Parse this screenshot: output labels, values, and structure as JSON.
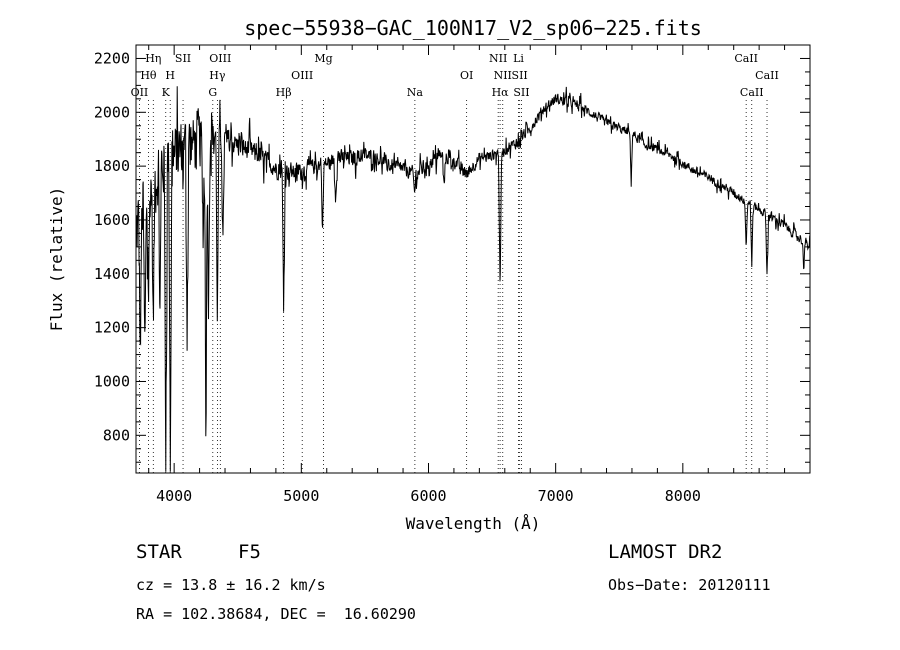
{
  "chart_data": {
    "type": "line",
    "title": "spec−55938−GAC_100N17_V2_sp06−225.fits",
    "xlabel": "Wavelength (Å)",
    "ylabel": "Flux (relative)",
    "xlim": [
      3700,
      9000
    ],
    "ylim": [
      660,
      2250
    ],
    "xticks": [
      4000,
      5000,
      6000,
      7000,
      8000
    ],
    "yticks": [
      800,
      1000,
      1200,
      1400,
      1600,
      1800,
      2000,
      2200
    ],
    "grid": false,
    "continuum": [
      [
        3700,
        1550
      ],
      [
        3800,
        1700
      ],
      [
        3900,
        1800
      ],
      [
        4000,
        1840
      ],
      [
        4100,
        1880
      ],
      [
        4200,
        1900
      ],
      [
        4300,
        1920
      ],
      [
        4400,
        1900
      ],
      [
        4500,
        1880
      ],
      [
        4600,
        1860
      ],
      [
        4700,
        1830
      ],
      [
        4800,
        1790
      ],
      [
        4900,
        1780
      ],
      [
        5000,
        1780
      ],
      [
        5100,
        1800
      ],
      [
        5200,
        1810
      ],
      [
        5300,
        1830
      ],
      [
        5400,
        1830
      ],
      [
        5500,
        1840
      ],
      [
        5600,
        1830
      ],
      [
        5700,
        1800
      ],
      [
        5800,
        1790
      ],
      [
        5900,
        1770
      ],
      [
        6000,
        1810
      ],
      [
        6100,
        1840
      ],
      [
        6200,
        1820
      ],
      [
        6300,
        1770
      ],
      [
        6400,
        1830
      ],
      [
        6500,
        1840
      ],
      [
        6600,
        1860
      ],
      [
        6700,
        1890
      ],
      [
        6800,
        1940
      ],
      [
        6900,
        2010
      ],
      [
        7000,
        2050
      ],
      [
        7100,
        2040
      ],
      [
        7200,
        2020
      ],
      [
        7300,
        1990
      ],
      [
        7400,
        1960
      ],
      [
        7500,
        1940
      ],
      [
        7600,
        1920
      ],
      [
        7700,
        1880
      ],
      [
        7800,
        1860
      ],
      [
        7900,
        1840
      ],
      [
        8000,
        1810
      ],
      [
        8100,
        1780
      ],
      [
        8200,
        1760
      ],
      [
        8300,
        1730
      ],
      [
        8400,
        1700
      ],
      [
        8500,
        1670
      ],
      [
        8600,
        1640
      ],
      [
        8700,
        1610
      ],
      [
        8800,
        1580
      ],
      [
        8900,
        1540
      ],
      [
        9000,
        1500
      ]
    ],
    "absorption_features": [
      [
        3734,
        1080
      ],
      [
        3770,
        1000
      ],
      [
        3798,
        1300
      ],
      [
        3836,
        1150
      ],
      [
        3889,
        1260
      ],
      [
        3934,
        740
      ],
      [
        3970,
        700
      ],
      [
        4102,
        1200
      ],
      [
        4227,
        1500
      ],
      [
        4250,
        780
      ],
      [
        4271,
        1300
      ],
      [
        4340,
        1200
      ],
      [
        4384,
        1500
      ],
      [
        4861,
        1250
      ],
      [
        5167,
        1560
      ],
      [
        5270,
        1680
      ],
      [
        5890,
        1700
      ],
      [
        6122,
        1720
      ],
      [
        6563,
        1300
      ],
      [
        7594,
        1760
      ],
      [
        8498,
        1500
      ],
      [
        8542,
        1440
      ],
      [
        8662,
        1390
      ],
      [
        8950,
        1440
      ]
    ],
    "noise_amplitude": [
      [
        3700,
        420
      ],
      [
        3900,
        360
      ],
      [
        4200,
        300
      ],
      [
        4400,
        130
      ],
      [
        5000,
        90
      ],
      [
        6000,
        75
      ],
      [
        7000,
        55
      ],
      [
        8000,
        45
      ],
      [
        9000,
        55
      ]
    ],
    "lines": [
      {
        "label": "OII",
        "wavelength": 3727,
        "row": 3
      },
      {
        "label": "Hθ",
        "wavelength": 3798,
        "row": 2
      },
      {
        "label": "Hη",
        "wavelength": 3836,
        "row": 1
      },
      {
        "label": "K",
        "wavelength": 3934,
        "row": 3
      },
      {
        "label": "H",
        "wavelength": 3969,
        "row": 2
      },
      {
        "label": "SII",
        "wavelength": 4070,
        "row": 1
      },
      {
        "label": "OIII",
        "wavelength": 4363,
        "row": 1
      },
      {
        "label": "Hγ",
        "wavelength": 4340,
        "row": 2
      },
      {
        "label": "G",
        "wavelength": 4304,
        "row": 3
      },
      {
        "label": "Hβ",
        "wavelength": 4861,
        "row": 3
      },
      {
        "label": "OIII",
        "wavelength": 5007,
        "row": 2
      },
      {
        "label": "Mg",
        "wavelength": 5175,
        "row": 1
      },
      {
        "label": "Na",
        "wavelength": 5893,
        "row": 3
      },
      {
        "label": "OI",
        "wavelength": 6300,
        "row": 2
      },
      {
        "label": "NII",
        "wavelength": 6548,
        "row": 1
      },
      {
        "label": "NII",
        "wavelength": 6584,
        "row": 2
      },
      {
        "label": "Hα",
        "wavelength": 6563,
        "row": 3
      },
      {
        "label": "Li",
        "wavelength": 6708,
        "row": 1
      },
      {
        "label": "SII",
        "wavelength": 6717,
        "row": 2
      },
      {
        "label": "SII",
        "wavelength": 6731,
        "row": 3
      },
      {
        "label": "CaII",
        "wavelength": 8498,
        "row": 1
      },
      {
        "label": "CaII",
        "wavelength": 8662,
        "row": 2
      },
      {
        "label": "CaII",
        "wavelength": 8542,
        "row": 3
      }
    ]
  },
  "info": {
    "class": "STAR",
    "subclass": "F5",
    "survey": "LAMOST DR2",
    "cz": "cz = 13.8 ± 16.2 km/s",
    "obs_date": "Obs−Date: 20120111",
    "coords": "RA = 102.38684, DEC =  16.60290"
  }
}
